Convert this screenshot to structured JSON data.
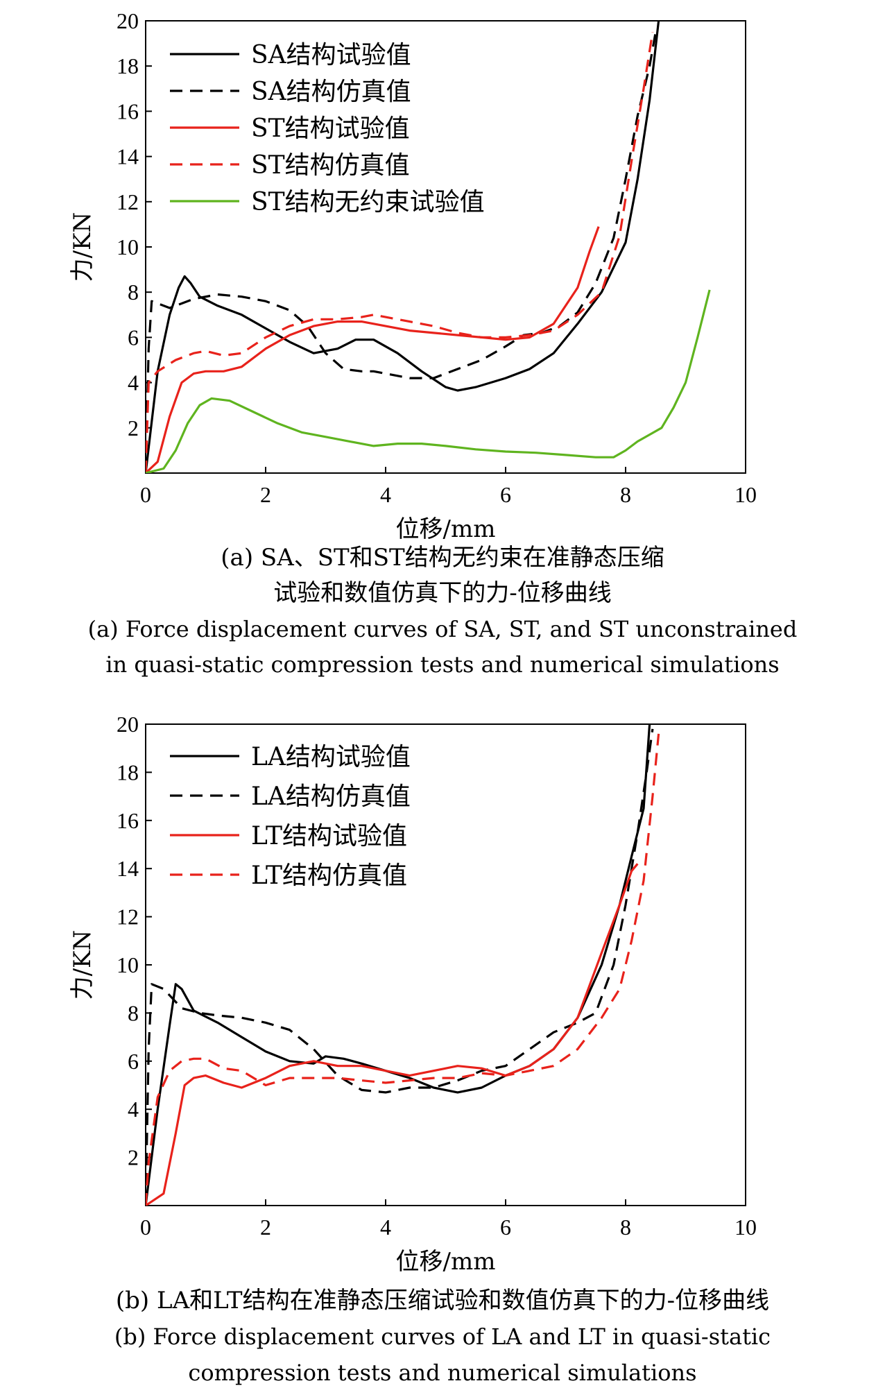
{
  "chart_data": [
    {
      "type": "line",
      "xlabel": "位移/mm",
      "ylabel": "力/KN",
      "xlim": [
        0,
        10
      ],
      "ylim": [
        0,
        20
      ],
      "xticks": [
        "0",
        "2",
        "4",
        "6",
        "8",
        "10"
      ],
      "yticks": [
        "2",
        "4",
        "6",
        "8",
        "10",
        "12",
        "14",
        "16",
        "18",
        "20"
      ],
      "grid": false,
      "legend_position": "top-left",
      "caption_cn": [
        "(a) SA、ST和ST结构无约束在准静态压缩",
        "试验和数值仿真下的力-位移曲线"
      ],
      "caption_en": [
        "(a) Force displacement curves of SA, ST, and ST unconstrained",
        "in quasi-static compression tests and numerical simulations"
      ],
      "series": [
        {
          "name": "SA结构试验值",
          "color": "#000000",
          "dash": "solid",
          "x": [
            0,
            0.2,
            0.4,
            0.55,
            0.65,
            0.75,
            0.9,
            1.2,
            1.6,
            2.0,
            2.4,
            2.8,
            3.2,
            3.5,
            3.8,
            4.2,
            4.6,
            5.0,
            5.2,
            5.5,
            6.0,
            6.4,
            6.8,
            7.2,
            7.6,
            8.0,
            8.2,
            8.4,
            8.55
          ],
          "y": [
            0,
            4.5,
            7.0,
            8.2,
            8.7,
            8.4,
            7.8,
            7.4,
            7.0,
            6.4,
            5.8,
            5.3,
            5.5,
            5.9,
            5.9,
            5.3,
            4.5,
            3.8,
            3.65,
            3.8,
            4.2,
            4.6,
            5.3,
            6.6,
            8.0,
            10.2,
            13.0,
            16.5,
            20.0
          ]
        },
        {
          "name": "SA结构仿真值",
          "color": "#000000",
          "dash": "dashed",
          "x": [
            0,
            0.05,
            0.1,
            0.4,
            0.8,
            1.2,
            1.6,
            2.0,
            2.4,
            2.7,
            3.0,
            3.3,
            3.6,
            3.8,
            4.0,
            4.4,
            4.8,
            5.2,
            5.6,
            6.0,
            6.3,
            6.6,
            6.9,
            7.2,
            7.5,
            7.8,
            8.0,
            8.2,
            8.4,
            8.5
          ],
          "y": [
            0,
            5.5,
            7.6,
            7.3,
            7.7,
            7.9,
            7.8,
            7.6,
            7.2,
            6.5,
            5.3,
            4.6,
            4.5,
            4.5,
            4.4,
            4.2,
            4.2,
            4.6,
            5.0,
            5.6,
            6.1,
            6.2,
            6.5,
            7.1,
            8.4,
            10.4,
            13.0,
            15.8,
            18.0,
            19.5
          ]
        },
        {
          "name": "ST结构试验值",
          "color": "#e8221b",
          "dash": "solid",
          "x": [
            0,
            0.2,
            0.4,
            0.6,
            0.8,
            1.0,
            1.3,
            1.6,
            2.0,
            2.4,
            2.8,
            3.2,
            3.6,
            4.0,
            4.4,
            4.8,
            5.2,
            5.6,
            6.0,
            6.4,
            6.8,
            7.2,
            7.4,
            7.55
          ],
          "y": [
            0,
            0.5,
            2.5,
            4.0,
            4.4,
            4.5,
            4.5,
            4.7,
            5.5,
            6.1,
            6.5,
            6.7,
            6.7,
            6.5,
            6.3,
            6.2,
            6.1,
            6.0,
            5.9,
            6.0,
            6.6,
            8.2,
            9.8,
            10.9
          ]
        },
        {
          "name": "ST结构仿真值",
          "color": "#e8221b",
          "dash": "dashed",
          "x": [
            0,
            0.05,
            0.2,
            0.5,
            0.8,
            1.0,
            1.3,
            1.6,
            2.0,
            2.4,
            2.8,
            3.2,
            3.6,
            3.8,
            4.0,
            4.4,
            4.8,
            5.2,
            5.6,
            6.0,
            6.4,
            6.8,
            7.2,
            7.6,
            7.9,
            8.1,
            8.3,
            8.45
          ],
          "y": [
            0,
            4.0,
            4.5,
            5.0,
            5.3,
            5.4,
            5.2,
            5.3,
            6.0,
            6.5,
            6.8,
            6.8,
            6.9,
            7.0,
            6.9,
            6.7,
            6.5,
            6.2,
            6.0,
            6.0,
            6.1,
            6.3,
            7.0,
            8.0,
            10.5,
            13.8,
            17.0,
            19.5
          ]
        },
        {
          "name": "ST结构无约束试验值",
          "color": "#5fb41f",
          "dash": "solid",
          "x": [
            0,
            0.3,
            0.5,
            0.7,
            0.9,
            1.1,
            1.4,
            1.8,
            2.2,
            2.6,
            3.0,
            3.4,
            3.8,
            4.2,
            4.6,
            5.0,
            5.5,
            6.0,
            6.5,
            7.0,
            7.5,
            7.8,
            8.0,
            8.2,
            8.4,
            8.6,
            8.8,
            9.0,
            9.2,
            9.4
          ],
          "y": [
            0,
            0.2,
            1.0,
            2.2,
            3.0,
            3.3,
            3.2,
            2.7,
            2.2,
            1.8,
            1.6,
            1.4,
            1.2,
            1.3,
            1.3,
            1.2,
            1.05,
            0.95,
            0.9,
            0.8,
            0.7,
            0.7,
            1.0,
            1.4,
            1.7,
            2.0,
            2.9,
            4.0,
            6.0,
            8.1
          ]
        }
      ]
    },
    {
      "type": "line",
      "xlabel": "位移/mm",
      "ylabel": "力/KN",
      "xlim": [
        0,
        10
      ],
      "ylim": [
        0,
        20
      ],
      "xticks": [
        "0",
        "2",
        "4",
        "6",
        "8",
        "10"
      ],
      "yticks": [
        "2",
        "4",
        "6",
        "8",
        "10",
        "12",
        "14",
        "16",
        "18",
        "20"
      ],
      "grid": false,
      "legend_position": "top-left",
      "caption_cn": [
        "(b) LA和LT结构在准静态压缩试验和数值仿真下的力-位移曲线"
      ],
      "caption_en": [
        "(b) Force displacement curves of LA and LT in quasi-static",
        "compression tests and numerical simulations"
      ],
      "series": [
        {
          "name": "LA结构试验值",
          "color": "#000000",
          "dash": "solid",
          "x": [
            0,
            0.2,
            0.4,
            0.5,
            0.6,
            0.8,
            1.2,
            1.6,
            2.0,
            2.4,
            2.8,
            3.0,
            3.3,
            3.6,
            4.0,
            4.4,
            4.8,
            5.2,
            5.6,
            6.0,
            6.4,
            6.8,
            7.2,
            7.6,
            7.9,
            8.1,
            8.3,
            8.4
          ],
          "y": [
            0,
            4.0,
            7.5,
            9.2,
            9.0,
            8.1,
            7.6,
            7.0,
            6.4,
            6.0,
            5.9,
            6.2,
            6.1,
            5.9,
            5.6,
            5.3,
            4.9,
            4.7,
            4.9,
            5.4,
            5.8,
            6.5,
            7.8,
            10.0,
            12.5,
            14.5,
            16.5,
            20.0
          ]
        },
        {
          "name": "LA结构仿真值",
          "color": "#000000",
          "dash": "dashed",
          "x": [
            0,
            0.05,
            0.1,
            0.3,
            0.6,
            0.9,
            1.2,
            1.6,
            2.0,
            2.4,
            2.8,
            3.2,
            3.6,
            4.0,
            4.4,
            4.8,
            5.2,
            5.6,
            6.0,
            6.4,
            6.8,
            7.2,
            7.5,
            7.8,
            8.0,
            8.2,
            8.35,
            8.45
          ],
          "y": [
            0,
            6.5,
            9.2,
            9.0,
            8.2,
            8.0,
            7.9,
            7.8,
            7.6,
            7.3,
            6.5,
            5.4,
            4.8,
            4.7,
            4.9,
            4.9,
            5.2,
            5.6,
            5.8,
            6.5,
            7.2,
            7.6,
            8.0,
            10.0,
            12.5,
            15.5,
            18.0,
            19.8
          ]
        },
        {
          "name": "LT结构试验值",
          "color": "#e8221b",
          "dash": "solid",
          "x": [
            0,
            0.3,
            0.5,
            0.65,
            0.8,
            1.0,
            1.3,
            1.6,
            2.0,
            2.4,
            2.8,
            3.2,
            3.6,
            4.0,
            4.4,
            4.8,
            5.2,
            5.6,
            6.0,
            6.4,
            6.8,
            7.2,
            7.6,
            7.9,
            8.1,
            8.2
          ],
          "y": [
            0,
            0.5,
            3.0,
            5.0,
            5.3,
            5.4,
            5.1,
            4.9,
            5.3,
            5.8,
            6.0,
            5.8,
            5.8,
            5.6,
            5.4,
            5.6,
            5.8,
            5.7,
            5.4,
            5.8,
            6.5,
            7.8,
            10.5,
            12.5,
            13.9,
            14.2
          ]
        },
        {
          "name": "LT结构仿真值",
          "color": "#e8221b",
          "dash": "dashed",
          "x": [
            0,
            0.05,
            0.2,
            0.4,
            0.6,
            0.8,
            1.0,
            1.3,
            1.6,
            2.0,
            2.4,
            2.8,
            3.2,
            3.6,
            4.0,
            4.4,
            4.8,
            5.2,
            5.6,
            6.0,
            6.4,
            6.8,
            7.2,
            7.6,
            7.9,
            8.1,
            8.3,
            8.45,
            8.55
          ],
          "y": [
            0,
            1.8,
            4.5,
            5.6,
            6.0,
            6.1,
            6.1,
            5.7,
            5.6,
            5.0,
            5.3,
            5.3,
            5.3,
            5.2,
            5.1,
            5.2,
            5.3,
            5.3,
            5.5,
            5.4,
            5.6,
            5.8,
            6.5,
            7.8,
            9.0,
            11.0,
            13.5,
            17.0,
            19.6
          ]
        }
      ]
    }
  ]
}
